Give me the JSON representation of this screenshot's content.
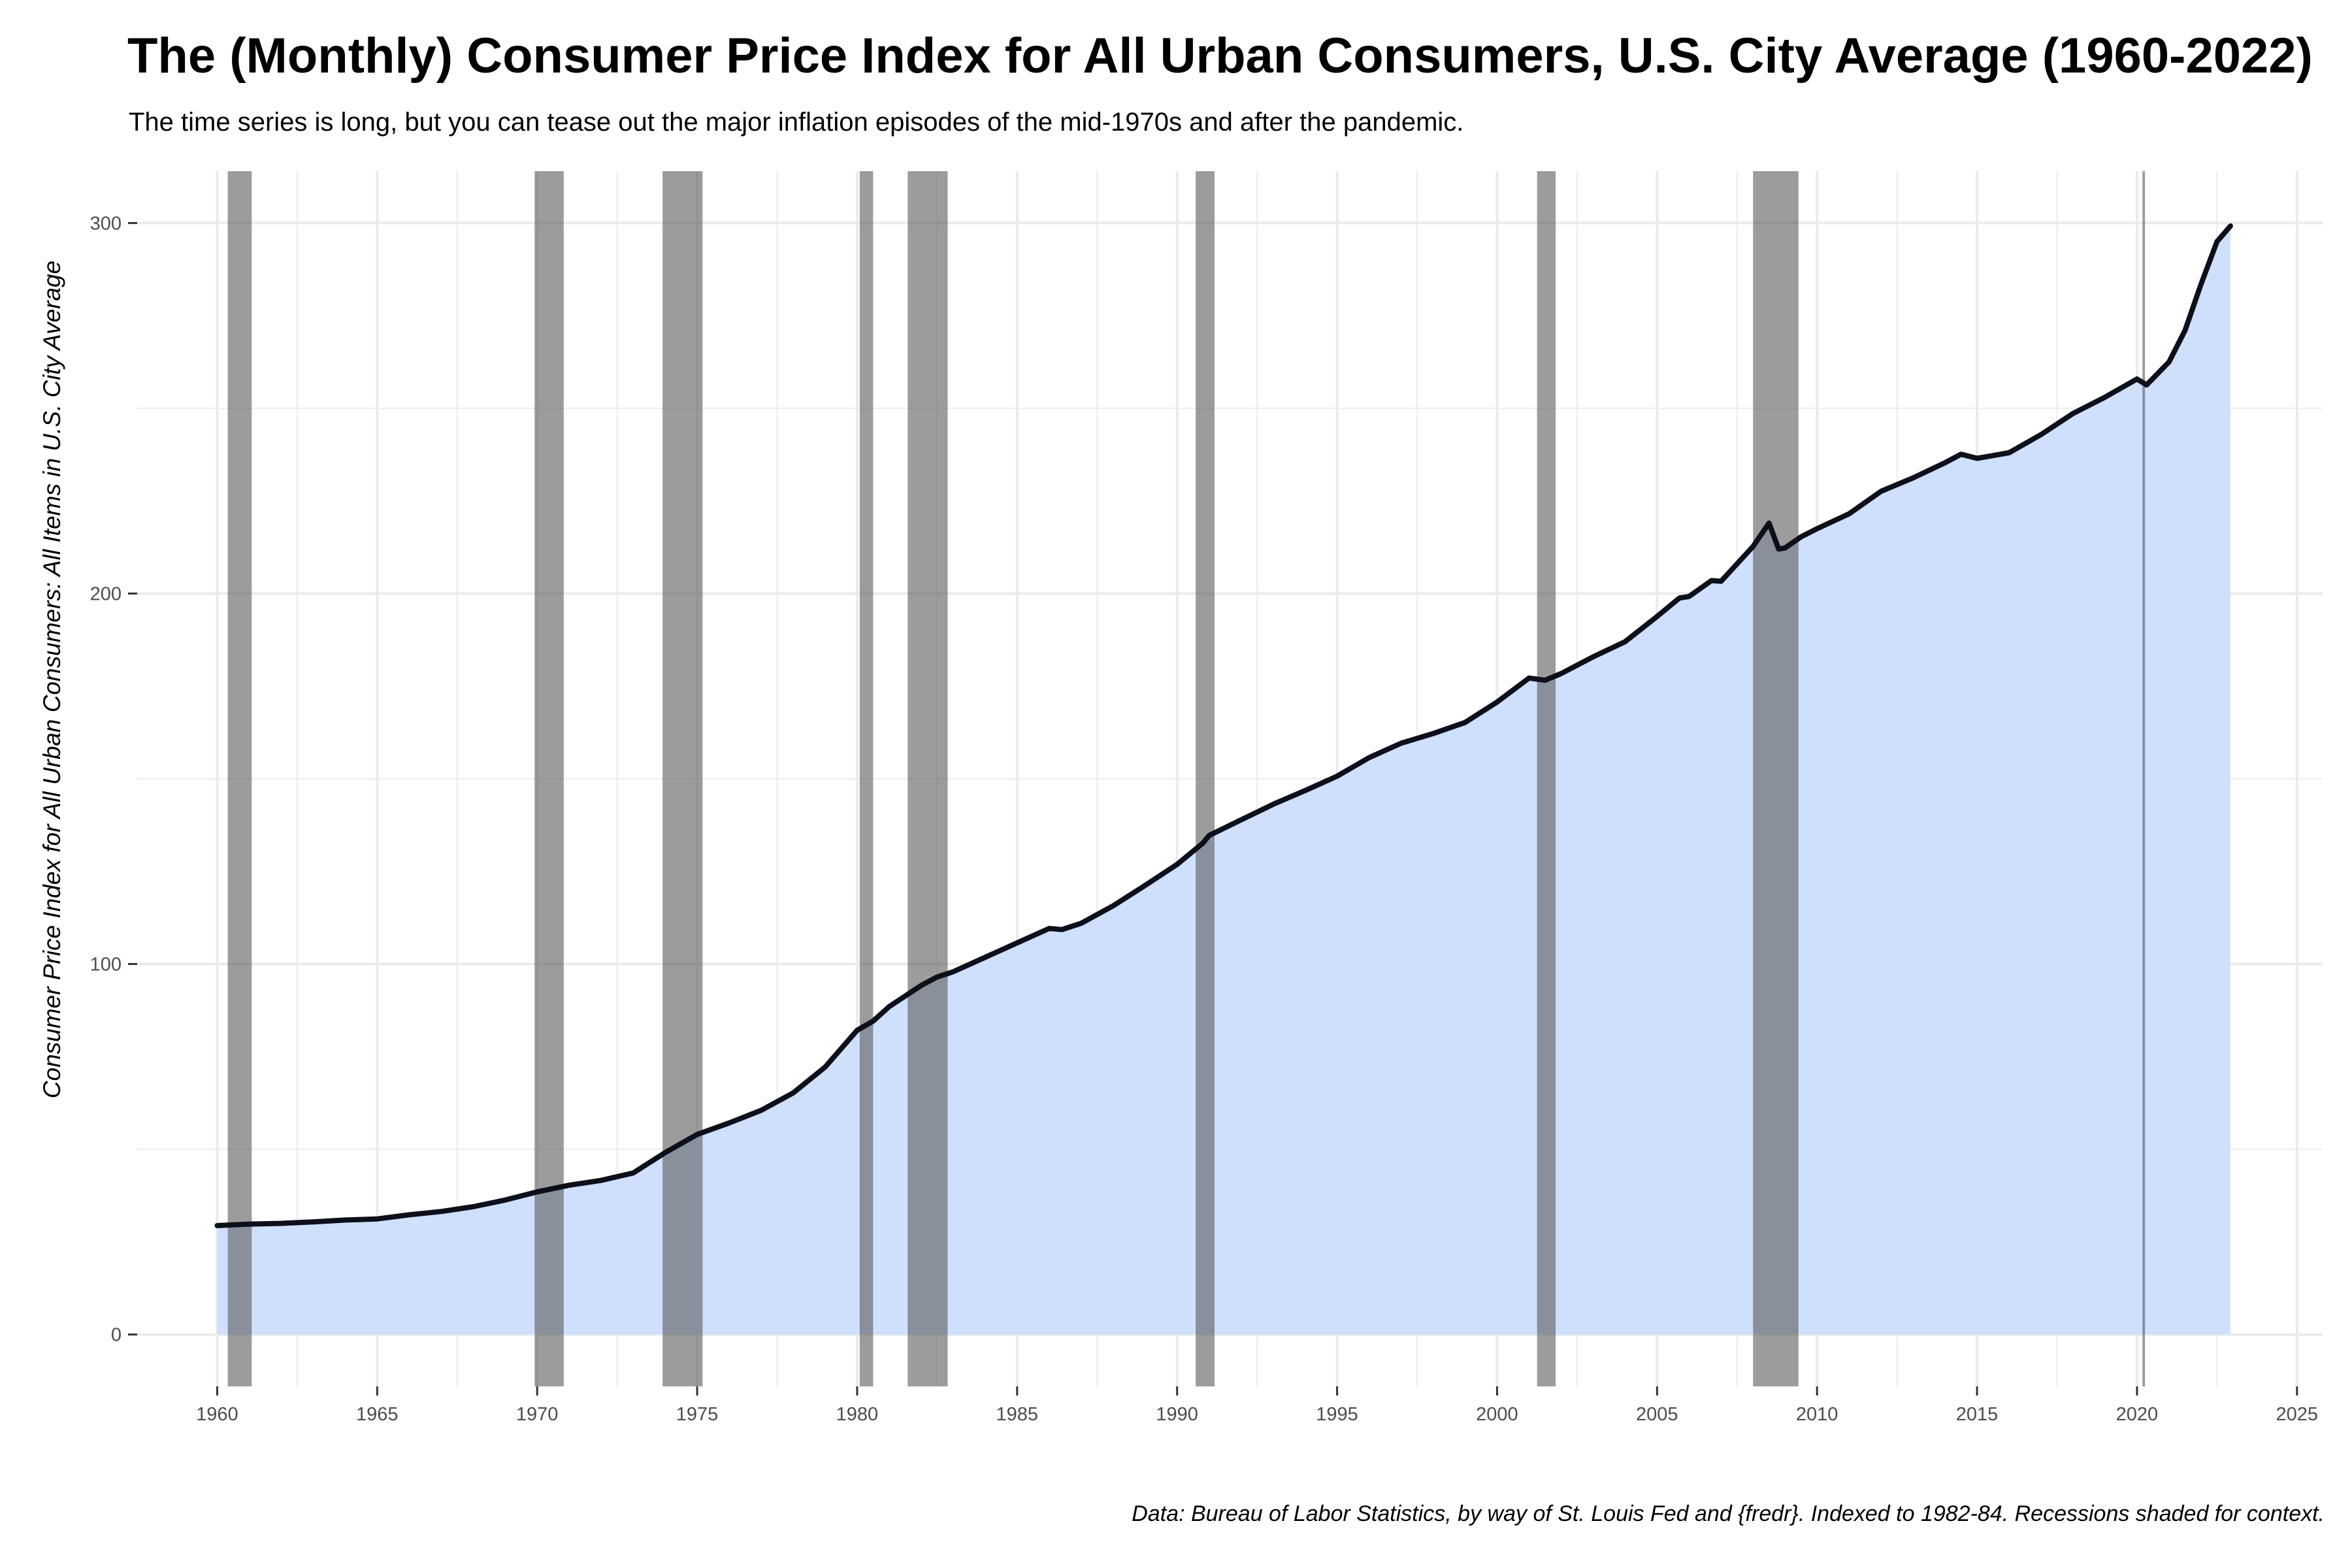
{
  "title": "The (Monthly) Consumer Price Index for All Urban Consumers, U.S. City Average (1960-2022)",
  "subtitle": "The time series is long, but you can tease out the major inflation episodes of the mid-1970s and after the pandemic.",
  "caption": "Data: Bureau of Labor Statistics, by way of St. Louis Fed and {fredr}. Indexed to 1982-84. Recessions shaded for context.",
  "colors": {
    "area_fill": "#cfe0fd",
    "line": "#0d0f1a",
    "recession": "#5a5a5a",
    "grid": "#ebebeb",
    "tick_text": "#4d4d4d"
  },
  "chart_data": {
    "type": "area",
    "title": "The (Monthly) Consumer Price Index for All Urban Consumers, U.S. City Average (1960-2022)",
    "subtitle": "The time series is long, but you can tease out the major inflation episodes of the mid-1970s and after the pandemic.",
    "xlabel": "",
    "ylabel": "Consumer Price Index for All Urban Consumers: All Items in U.S. City Average",
    "xlim": [
      1957.5,
      2025.8
    ],
    "ylim": [
      -14,
      314
    ],
    "x_ticks": [
      1960,
      1965,
      1970,
      1975,
      1980,
      1985,
      1990,
      1995,
      2000,
      2005,
      2010,
      2015,
      2020,
      2025
    ],
    "y_ticks": [
      0,
      100,
      200,
      300
    ],
    "grid": true,
    "legend": "none",
    "series": [
      {
        "x": [
          1960.0,
          1961.0,
          1962.0,
          1963.0,
          1964.0,
          1965.0,
          1966.0,
          1967.0,
          1968.0,
          1969.0,
          1970.0,
          1971.0,
          1972.0,
          1973.0,
          1974.0,
          1975.0,
          1976.0,
          1977.0,
          1978.0,
          1979.0,
          1980.0,
          1980.5,
          1981.0,
          1982.0,
          1982.5,
          1983.0,
          1984.0,
          1985.0,
          1986.0,
          1986.4,
          1987.0,
          1988.0,
          1989.0,
          1990.0,
          1990.8,
          1991.0,
          1992.0,
          1993.0,
          1994.0,
          1995.0,
          1996.0,
          1997.0,
          1998.0,
          1999.0,
          2000.0,
          2001.0,
          2001.5,
          2002.0,
          2003.0,
          2004.0,
          2005.0,
          2005.7,
          2006.0,
          2006.7,
          2007.0,
          2008.0,
          2008.5,
          2008.8,
          2009.0,
          2009.5,
          2010.0,
          2011.0,
          2012.0,
          2013.0,
          2014.0,
          2014.5,
          2015.0,
          2016.0,
          2017.0,
          2018.0,
          2019.0,
          2020.0,
          2020.3,
          2021.0,
          2021.5,
          2022.0,
          2022.5,
          2022.92
        ],
        "values": [
          29.4,
          29.8,
          30.0,
          30.4,
          30.9,
          31.2,
          32.3,
          33.2,
          34.5,
          36.3,
          38.5,
          40.3,
          41.6,
          43.6,
          49.1,
          54.0,
          57.1,
          60.5,
          65.2,
          72.2,
          82.1,
          84.6,
          88.5,
          94.2,
          96.5,
          97.9,
          101.8,
          105.7,
          109.6,
          109.3,
          111.0,
          115.7,
          121.2,
          126.9,
          132.6,
          134.7,
          138.9,
          143.1,
          146.8,
          150.7,
          155.7,
          159.6,
          162.2,
          165.2,
          170.7,
          177.2,
          176.6,
          178.4,
          182.9,
          187.0,
          193.8,
          198.8,
          199.2,
          203.5,
          203.3,
          212.7,
          219.0,
          212.0,
          212.3,
          215.3,
          217.5,
          221.5,
          227.6,
          231.2,
          235.3,
          237.6,
          236.5,
          238.0,
          242.9,
          248.6,
          253.0,
          257.9,
          256.3,
          262.5,
          271.0,
          283.5,
          295.0,
          299.2
        ]
      }
    ],
    "recessions": [
      [
        1960.33,
        1961.08
      ],
      [
        1969.92,
        1970.83
      ],
      [
        1973.92,
        1975.17
      ],
      [
        1980.08,
        1980.5
      ],
      [
        1981.58,
        1982.83
      ],
      [
        1990.58,
        1991.17
      ],
      [
        2001.25,
        2001.83
      ],
      [
        2008.0,
        2009.42
      ],
      [
        2020.17,
        2020.25
      ]
    ]
  }
}
